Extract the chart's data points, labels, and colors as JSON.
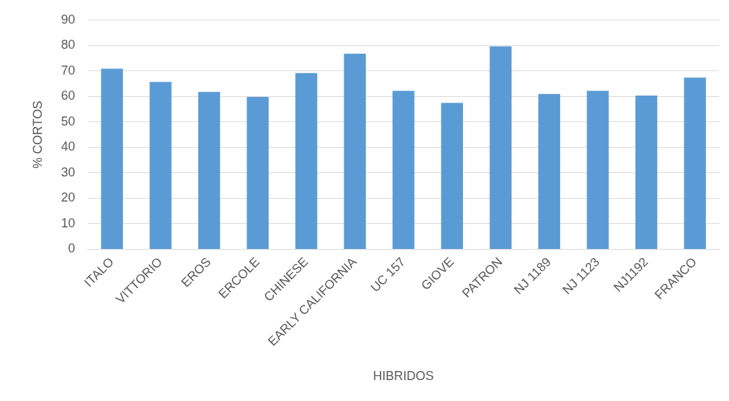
{
  "chart_data": {
    "type": "bar",
    "xlabel": "HIBRIDOS",
    "ylabel": "% CORTOS",
    "categories": [
      "ITALO",
      "VITTORIO",
      "EROS",
      "ERCOLE",
      "CHINESE",
      "EARLY CALIFORNIA",
      "UC 157",
      "GIOVE",
      "PATRON",
      "NJ 1189",
      "NJ 1123",
      "NJ1192",
      "FRANCO"
    ],
    "values": [
      70.9,
      65.7,
      61.8,
      59.8,
      69.2,
      76.8,
      62.2,
      57.5,
      79.7,
      61,
      62.2,
      60.4,
      67.4
    ],
    "color": "#5b9bd5",
    "ylim": [
      0,
      90
    ],
    "yticks": [
      0,
      10,
      20,
      30,
      40,
      50,
      60,
      70,
      80,
      90
    ],
    "grid": "y",
    "legend": false
  }
}
